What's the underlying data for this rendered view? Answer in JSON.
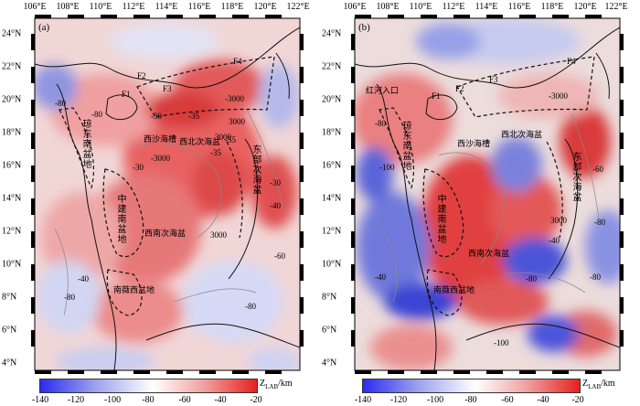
{
  "longitude_ticks": [
    "106°E",
    "108°E",
    "110°E",
    "112°E",
    "114°E",
    "116°E",
    "118°E",
    "120°E",
    "122°E"
  ],
  "latitude_ticks": [
    "24°N",
    "22°N",
    "20°N",
    "18°N",
    "16°N",
    "14°N",
    "12°N",
    "10°N",
    "8°N",
    "6°N",
    "4°N"
  ],
  "panels": [
    {
      "label": "(a)",
      "map_labels": {
        "F4": "F4",
        "F3": "F3",
        "F2": "F2",
        "F1": "F1",
        "c3000a": "-3000",
        "c3000b": "3000",
        "c3000c": "3000",
        "c3000d": "-3000",
        "c3000e": "3000",
        "c30a": "-30",
        "c30b": "-30",
        "c35a": "-35",
        "c35b": "-35",
        "c55a": "-55",
        "c80a": "-80",
        "c80b": "-80",
        "c80c": "-80",
        "c80d": "-80",
        "c40a": "-40",
        "c40b": "-40",
        "c60": "-60",
        "c30c": "-30",
        "xisha": "西沙海槽",
        "xibei": "西北次海盆",
        "xinan": "西南次海盆",
        "nanwei": "南薇西盆地"
      },
      "vertical_labels": {
        "qiongdongnan": "琼东南盆地",
        "zhongjiannan": "中建南盆地",
        "dongbu": "东部次海盆"
      }
    },
    {
      "label": "(b)",
      "map_labels": {
        "F4": "F4",
        "F3": "F3",
        "F2": "F2",
        "F1": "F1",
        "honghe": "红河入口",
        "c3000a": "-3000",
        "c3000b": "3000",
        "c40a": "-40",
        "c40b": "-40",
        "c80a": "-80",
        "c80b": "-80",
        "c80c": "-80",
        "c80d": "-80",
        "c100a": "-100",
        "c100b": "-100",
        "c60": "-60",
        "xisha": "西沙海槽",
        "xibei": "西北次海盆",
        "xinan": "西南次海盆",
        "nanwei": "南薇西盆地"
      },
      "vertical_labels": {
        "qiongdongnan": "琼东南盆地",
        "zhongjiannan": "中建南盆地",
        "dongbu": "东部次海盆"
      }
    }
  ],
  "colorbar": {
    "ticks": [
      "-140",
      "-120",
      "-100",
      "-80",
      "-60",
      "-40",
      "-20"
    ],
    "unit_main": "Z",
    "unit_sub": "LAB",
    "unit_tail": "/km",
    "colors": {
      "deep": "#2b2bf0",
      "mid": "#ffffff",
      "shallow": "#e8201e"
    }
  }
}
